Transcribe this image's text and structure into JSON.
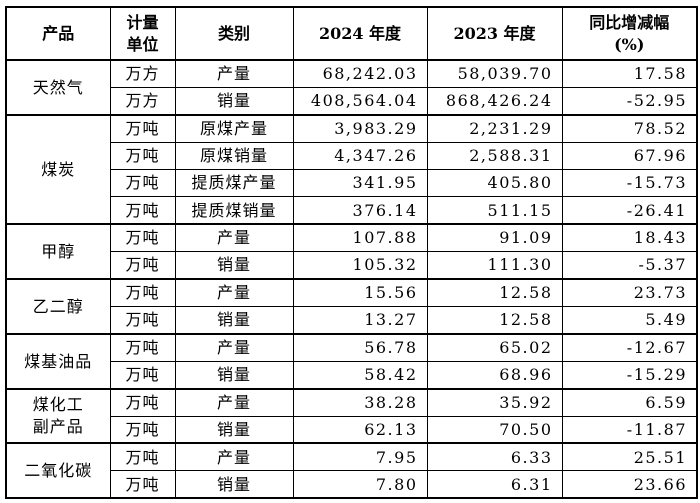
{
  "table": {
    "columns": [
      {
        "key": "product",
        "label": "产品"
      },
      {
        "key": "unit",
        "label": "计量\n单位"
      },
      {
        "key": "category",
        "label": "类别"
      },
      {
        "key": "y2024",
        "label": "2024 年度"
      },
      {
        "key": "y2023",
        "label": "2023 年度"
      },
      {
        "key": "yoy",
        "label": "同比增减幅\n(%)"
      }
    ],
    "groups": [
      {
        "product": "天然气",
        "rows": [
          {
            "unit": "万方",
            "category": "产量",
            "y2024": "68,242.03",
            "y2023": "58,039.70",
            "yoy": "17.58"
          },
          {
            "unit": "万方",
            "category": "销量",
            "y2024": "408,564.04",
            "y2023": "868,426.24",
            "yoy": "-52.95"
          }
        ]
      },
      {
        "product": "煤炭",
        "rows": [
          {
            "unit": "万吨",
            "category": "原煤产量",
            "y2024": "3,983.29",
            "y2023": "2,231.29",
            "yoy": "78.52"
          },
          {
            "unit": "万吨",
            "category": "原煤销量",
            "y2024": "4,347.26",
            "y2023": "2,588.31",
            "yoy": "67.96"
          },
          {
            "unit": "万吨",
            "category": "提质煤产量",
            "y2024": "341.95",
            "y2023": "405.80",
            "yoy": "-15.73"
          },
          {
            "unit": "万吨",
            "category": "提质煤销量",
            "y2024": "376.14",
            "y2023": "511.15",
            "yoy": "-26.41"
          }
        ]
      },
      {
        "product": "甲醇",
        "rows": [
          {
            "unit": "万吨",
            "category": "产量",
            "y2024": "107.88",
            "y2023": "91.09",
            "yoy": "18.43"
          },
          {
            "unit": "万吨",
            "category": "销量",
            "y2024": "105.32",
            "y2023": "111.30",
            "yoy": "-5.37"
          }
        ]
      },
      {
        "product": "乙二醇",
        "rows": [
          {
            "unit": "万吨",
            "category": "产量",
            "y2024": "15.56",
            "y2023": "12.58",
            "yoy": "23.73"
          },
          {
            "unit": "万吨",
            "category": "销量",
            "y2024": "13.27",
            "y2023": "12.58",
            "yoy": "5.49"
          }
        ]
      },
      {
        "product": "煤基油品",
        "rows": [
          {
            "unit": "万吨",
            "category": "产量",
            "y2024": "56.78",
            "y2023": "65.02",
            "yoy": "-12.67"
          },
          {
            "unit": "万吨",
            "category": "销量",
            "y2024": "58.42",
            "y2023": "68.96",
            "yoy": "-15.29"
          }
        ]
      },
      {
        "product": "煤化工\n副产品",
        "rows": [
          {
            "unit": "万吨",
            "category": "产量",
            "y2024": "38.28",
            "y2023": "35.92",
            "yoy": "6.59"
          },
          {
            "unit": "万吨",
            "category": "销量",
            "y2024": "62.13",
            "y2023": "70.50",
            "yoy": "-11.87"
          }
        ]
      },
      {
        "product": "二氧化碳",
        "rows": [
          {
            "unit": "万吨",
            "category": "产量",
            "y2024": "7.95",
            "y2023": "6.33",
            "yoy": "25.51"
          },
          {
            "unit": "万吨",
            "category": "销量",
            "y2024": "7.80",
            "y2023": "6.31",
            "yoy": "23.66"
          }
        ]
      }
    ]
  }
}
